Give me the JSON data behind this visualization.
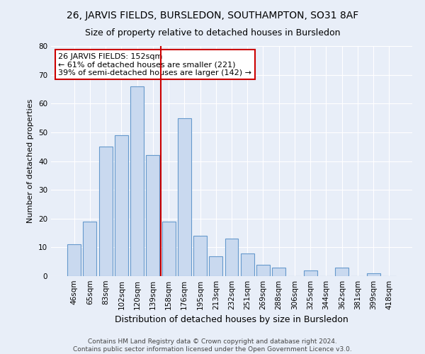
{
  "title": "26, JARVIS FIELDS, BURSLEDON, SOUTHAMPTON, SO31 8AF",
  "subtitle": "Size of property relative to detached houses in Bursledon",
  "xlabel": "Distribution of detached houses by size in Bursledon",
  "ylabel": "Number of detached properties",
  "bin_labels": [
    "46sqm",
    "65sqm",
    "83sqm",
    "102sqm",
    "120sqm",
    "139sqm",
    "158sqm",
    "176sqm",
    "195sqm",
    "213sqm",
    "232sqm",
    "251sqm",
    "269sqm",
    "288sqm",
    "306sqm",
    "325sqm",
    "344sqm",
    "362sqm",
    "381sqm",
    "399sqm",
    "418sqm"
  ],
  "bar_values": [
    11,
    19,
    45,
    49,
    66,
    42,
    19,
    55,
    14,
    7,
    13,
    8,
    4,
    3,
    0,
    2,
    0,
    3,
    0,
    1,
    0
  ],
  "bar_color": "#c9d9ef",
  "bar_edge_color": "#6699cc",
  "vline_index": 6,
  "vline_color": "#cc0000",
  "ylim": [
    0,
    80
  ],
  "yticks": [
    0,
    10,
    20,
    30,
    40,
    50,
    60,
    70,
    80
  ],
  "annotation_title": "26 JARVIS FIELDS: 152sqm",
  "annotation_line1": "← 61% of detached houses are smaller (221)",
  "annotation_line2": "39% of semi-detached houses are larger (142) →",
  "annotation_box_color": "#ffffff",
  "annotation_box_edge": "#cc0000",
  "bg_color": "#e8eef8",
  "footer1": "Contains HM Land Registry data © Crown copyright and database right 2024.",
  "footer2": "Contains public sector information licensed under the Open Government Licence v3.0.",
  "title_fontsize": 10,
  "subtitle_fontsize": 9,
  "xlabel_fontsize": 9,
  "ylabel_fontsize": 8,
  "tick_fontsize": 7.5,
  "annotation_fontsize": 8,
  "footer_fontsize": 6.5
}
